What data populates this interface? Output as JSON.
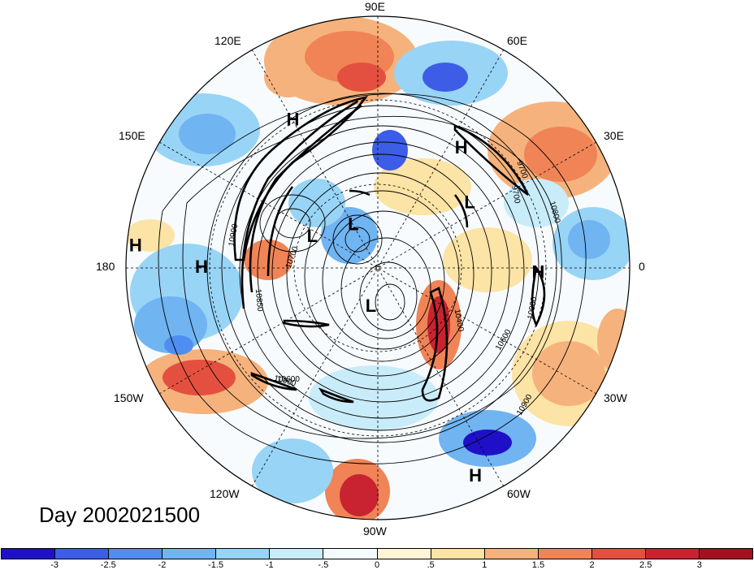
{
  "title": "Day 2002021500",
  "lon_labels": [
    "90E",
    "60E",
    "30E",
    "0",
    "30W",
    "60W",
    "90W",
    "120W",
    "150W",
    "180",
    "150E",
    "120E"
  ],
  "colorbar": {
    "colors": [
      "#1f10c8",
      "#3d5de6",
      "#4f8ef0",
      "#70b4f2",
      "#98d4f6",
      "#c9ecfa",
      "#f3fbfe",
      "#fdf5d6",
      "#fce3a6",
      "#f6b27c",
      "#f08457",
      "#e4503f",
      "#c92331",
      "#a3101f"
    ],
    "labels": [
      "-3",
      "-2.5",
      "-2",
      "-1.5",
      "-1",
      "-.5",
      "0",
      ".5",
      "1",
      "1.5",
      "2",
      "2.5",
      "3"
    ]
  },
  "pressure_centers": [
    {
      "label": "H",
      "lon": 55,
      "lat": 30
    },
    {
      "label": "H",
      "lon": 120,
      "lat": 22
    },
    {
      "label": "H",
      "lon": 180,
      "lat": 20
    },
    {
      "label": "H",
      "lon": 175,
      "lat": 2
    },
    {
      "label": "H",
      "lon": -2,
      "lat": 25
    },
    {
      "label": "H",
      "lon": -65,
      "lat": 5
    },
    {
      "label": "L",
      "lon": 35,
      "lat": 42
    },
    {
      "label": "L",
      "lon": 155,
      "lat": 58
    },
    {
      "label": "L",
      "lon": 120,
      "lat": 68
    },
    {
      "label": "L",
      "lon": -100,
      "lat": 72
    }
  ],
  "contour_labels": [
    "10900",
    "10600",
    "10400",
    "9700",
    "10900",
    "10800",
    "10900",
    "10700",
    "10850",
    "10900",
    "10600",
    "9700"
  ]
}
